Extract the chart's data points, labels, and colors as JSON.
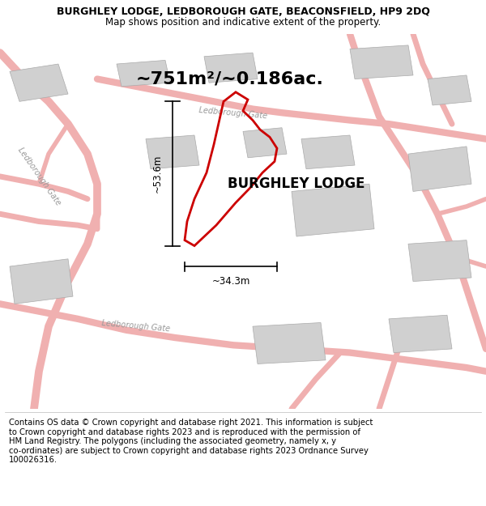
{
  "title_line1": "BURGHLEY LODGE, LEDBOROUGH GATE, BEACONSFIELD, HP9 2DQ",
  "title_line2": "Map shows position and indicative extent of the property.",
  "footer_text": "Contains OS data © Crown copyright and database right 2021. This information is subject\nto Crown copyright and database rights 2023 and is reproduced with the permission of\nHM Land Registry. The polygons (including the associated geometry, namely x, y\nco-ordinates) are subject to Crown copyright and database rights 2023 Ordnance Survey\n100026316.",
  "area_label": "~751m²/~0.186ac.",
  "property_label": "BURGHLEY LODGE",
  "dim_height": "~53.6m",
  "dim_width": "~34.3m",
  "road_label_top": "Ledborough Gate",
  "road_label_left": "Ledborough Gate",
  "road_label_bottom": "Ledborough Gate",
  "map_bg": "#f2f0f0",
  "road_color": "#f0b0b0",
  "building_color": "#d0d0d0",
  "property_outline_color": "#cc0000",
  "title_fontsize": 9,
  "subtitle_fontsize": 8.5,
  "footer_fontsize": 7.2,
  "area_fontsize": 16,
  "property_label_fontsize": 12,
  "dim_fontsize": 8.5,
  "road_label_fontsize": 7
}
